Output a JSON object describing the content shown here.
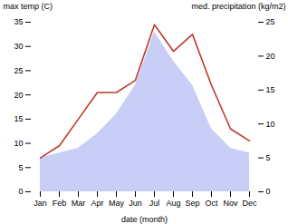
{
  "chart_data": {
    "type": "line",
    "xlabel": "date (month)",
    "ylabel": "max temp (C)",
    "y2label": "med. precipitation (kg/m2)",
    "categories": [
      "Jan",
      "Feb",
      "Mar",
      "Apr",
      "May",
      "Jun",
      "Jul",
      "Aug",
      "Sep",
      "Oct",
      "Nov",
      "Dec"
    ],
    "series": [
      {
        "type": "area",
        "color": "#c8cef5",
        "axis": "y2",
        "values": [
          5,
          5.714285714285714,
          6.428571428571429,
          8.571428571428571,
          11.428571428571429,
          15.714285714285714,
          23.571428571428573,
          19.285714285714285,
          15.714285714285714,
          9.285714285714286,
          6.428571428571429,
          5.714285714285714
        ]
      },
      {
        "type": "line",
        "color": "#c0392b",
        "values": [
          7.0,
          9.5,
          15.0,
          20.5,
          20.5,
          23.0,
          34.5,
          29.0,
          32.5,
          22.0,
          13.0,
          10.5
        ]
      }
    ],
    "ylim": [
      0,
      35
    ],
    "yticks": [
      0,
      5,
      10,
      15,
      20,
      25,
      30,
      35
    ],
    "y2lim": [
      0,
      25
    ],
    "y2ticks": [
      0,
      5,
      10,
      15,
      20,
      25
    ],
    "grid": false
  }
}
